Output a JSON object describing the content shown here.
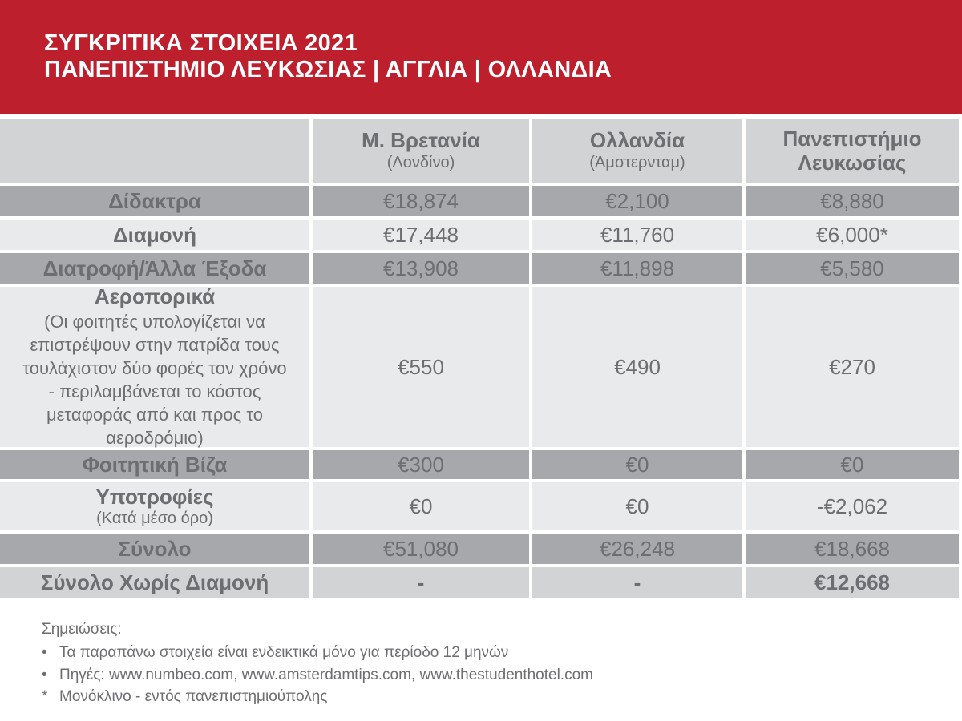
{
  "banner": {
    "line1": "ΣΥΓΚΡΙΤΙΚΑ ΣΤΟΙΧΕΙΑ 2021",
    "line2": "ΠΑΝΕΠΙΣΤΗΜΙΟ ΛΕΥΚΩΣΙΑΣ | ΑΓΓΛΙΑ | ΟΛΛΑΝΔΙΑ"
  },
  "colors": {
    "banner_red": "#BD1F2D",
    "row_gray": "#A6A8AB",
    "row_light": "#E9EAEB",
    "row_mid_gray": "#D2D3D5",
    "text_gray": "#6D6E71"
  },
  "table": {
    "columns": [
      {
        "name": "Μ. Βρετανία",
        "sub": "(Λονδίνο)"
      },
      {
        "name": "Ολλανδία",
        "sub": "(Άμστερνταμ)"
      },
      {
        "name": "Πανεπιστήμιο Λευκωσίας",
        "sub": ""
      }
    ],
    "rows": [
      {
        "label": "Δίδακτρα",
        "note": "",
        "values": [
          "€18,874",
          "€2,100",
          "€8,880"
        ]
      },
      {
        "label": "Διαμονή",
        "note": "",
        "values": [
          "€17,448",
          "€11,760",
          "€6,000*"
        ]
      },
      {
        "label": "Διατροφή/Άλλα Έξοδα",
        "note": "",
        "values": [
          "€13,908",
          "€11,898",
          "€5,580"
        ]
      },
      {
        "label": "Αεροπορικά",
        "note": "(Οι φοιτητές υπολογίζεται να επιστρέψουν στην πατρίδα τους τουλάχιστον δύο φορές τον χρόνο - περιλαμβάνεται το κόστος μεταφοράς από και προς το αεροδρόμιο)",
        "values": [
          "€550",
          "€490",
          "€270"
        ]
      },
      {
        "label": "Φοιτητική Βίζα",
        "note": "",
        "values": [
          "€300",
          "€0",
          "€0"
        ]
      },
      {
        "label": "Υποτροφίες",
        "note": "(Κατά μέσο όρο)",
        "values": [
          "€0",
          "€0",
          "-€2,062"
        ]
      },
      {
        "label": "Σύνολο",
        "note": "",
        "values": [
          "€51,080",
          "€26,248",
          "€18,668"
        ]
      },
      {
        "label": "Σύνολο Χωρίς Διαμονή",
        "note": "",
        "values": [
          "-",
          "-",
          "€12,668"
        ]
      }
    ]
  },
  "notes": {
    "heading": "Σημειώσεις:",
    "items": [
      {
        "marker": "•",
        "text": "Τα παραπάνω στοιχεία είναι ενδεικτικά μόνο για περίοδο 12 μηνών"
      },
      {
        "marker": "•",
        "text": "Πηγές: www.numbeo.com, www.amsterdamtips.com, www.thestudenthotel.com"
      },
      {
        "marker": "*",
        "text": "Μονόκλινο -  εντός πανεπιστημιούπολης"
      }
    ]
  },
  "chart_data": {
    "type": "table",
    "title": "ΣΥΓΚΡΙΤΙΚΑ ΣΤΟΙΧΕΙΑ 2021 — ΠΑΝΕΠΙΣΤΗΜΙΟ ΛΕΥΚΩΣΙΑΣ | ΑΓΓΛΙΑ | ΟΛΛΑΝΔΙΑ",
    "unit": "EUR",
    "categories": [
      "Δίδακτρα",
      "Διαμονή",
      "Διατροφή/Άλλα Έξοδα",
      "Αεροπορικά",
      "Φοιτητική Βίζα",
      "Υποτροφίες (Κατά μέσο όρο)",
      "Σύνολο",
      "Σύνολο Χωρίς Διαμονή"
    ],
    "series": [
      {
        "name": "Μ. Βρετανία (Λονδίνο)",
        "values": [
          18874,
          17448,
          13908,
          550,
          300,
          0,
          51080,
          null
        ]
      },
      {
        "name": "Ολλανδία (Άμστερνταμ)",
        "values": [
          2100,
          11760,
          11898,
          490,
          0,
          0,
          26248,
          null
        ]
      },
      {
        "name": "Πανεπιστήμιο Λευκωσίας",
        "values": [
          8880,
          6000,
          5580,
          270,
          0,
          -2062,
          18668,
          12668
        ]
      }
    ]
  }
}
